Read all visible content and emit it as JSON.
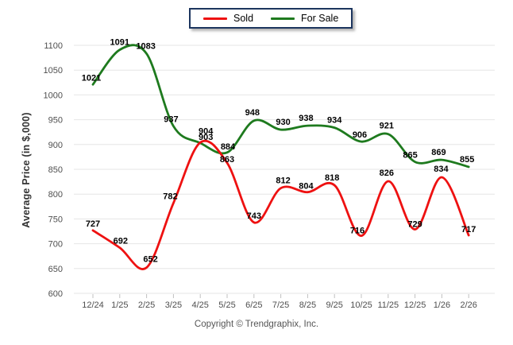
{
  "legend": {
    "items": [
      {
        "label": "Sold",
        "color": "#ee1111"
      },
      {
        "label": "For Sale",
        "color": "#1e7a1e"
      }
    ]
  },
  "y_axis_title": "Average Price (in $,000)",
  "footer": {
    "copyright": "Copyright © Trendgraphix, Inc."
  },
  "chart_data": {
    "type": "line",
    "categories": [
      "12/24",
      "1/25",
      "2/25",
      "3/25",
      "4/25",
      "5/25",
      "6/25",
      "7/25",
      "8/25",
      "9/25",
      "10/25",
      "11/25",
      "12/25",
      "1/26",
      "2/26"
    ],
    "series": [
      {
        "name": "Sold",
        "color": "#ee1111",
        "values": [
          727,
          692,
          652,
          782,
          904,
          863,
          743,
          812,
          804,
          818,
          716,
          826,
          729,
          834,
          717
        ]
      },
      {
        "name": "For Sale",
        "color": "#1e7a1e",
        "values": [
          1021,
          1091,
          1083,
          937,
          903,
          884,
          948,
          930,
          938,
          934,
          906,
          921,
          865,
          869,
          855
        ]
      }
    ],
    "ylabel": "Average Price (in $,000)",
    "ylim": [
      600,
      1100
    ],
    "ytick_step": 50,
    "grid": true,
    "legend_position": "top",
    "data_labels": true,
    "grid_color": "#e6e6e6",
    "tick_label_color": "#4f4f4f",
    "data_label_color": "#000000"
  }
}
